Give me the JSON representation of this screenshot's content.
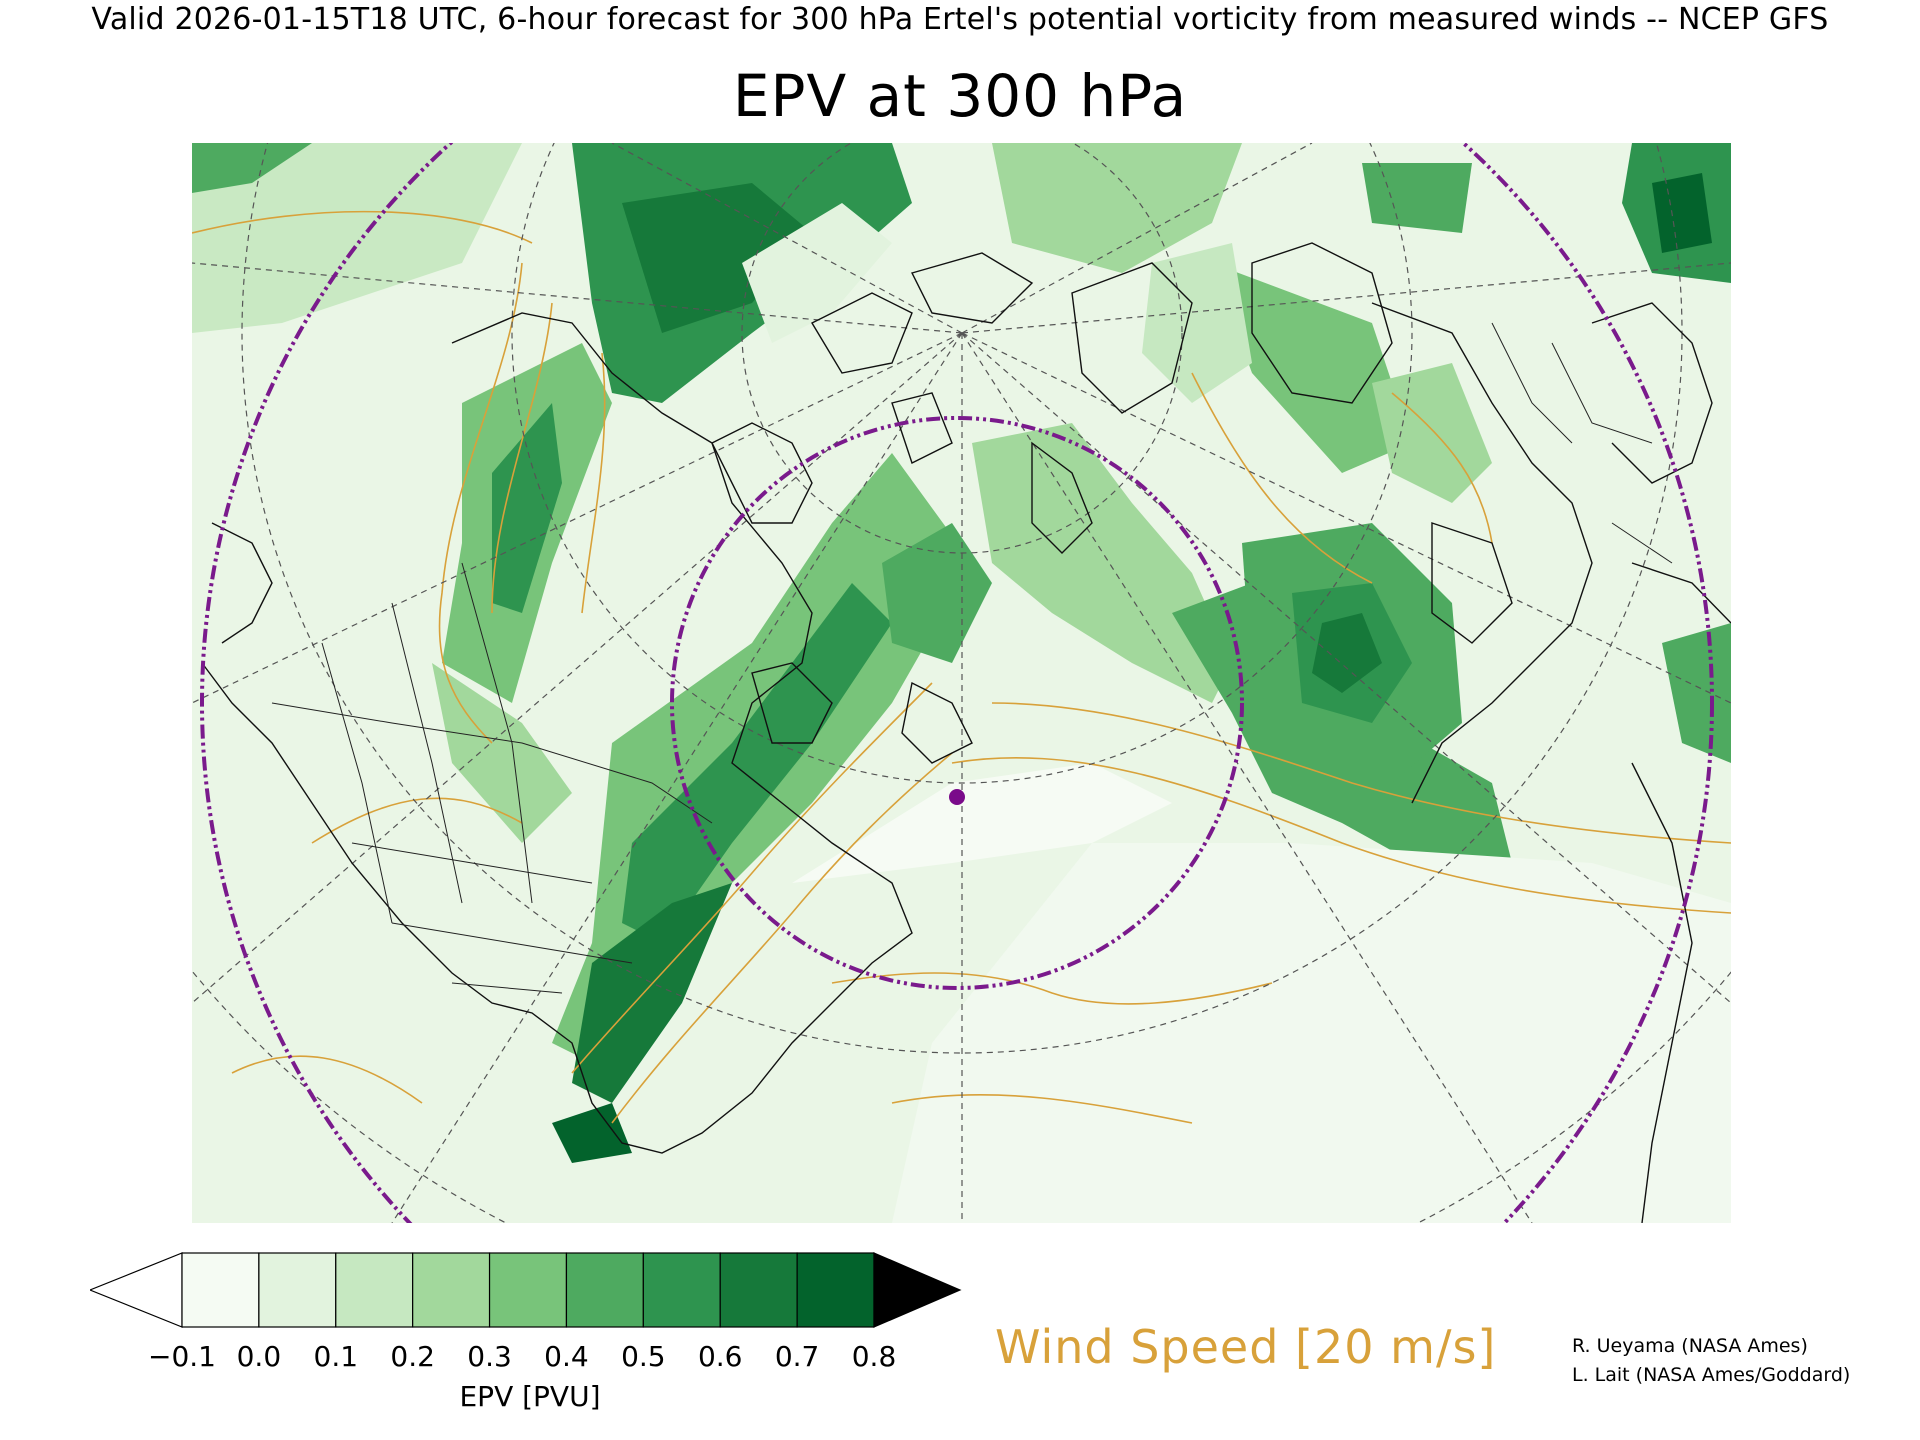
{
  "header": {
    "valid_line": "Valid 2026-01-15T18 UTC, 6-hour forecast for 300 hPa Ertel's potential vorticity from measured winds -- NCEP GFS",
    "title": "EPV at 300 hPa"
  },
  "map": {
    "center_marker_color": "#7a0a8a",
    "range_ring_color": "#7a1a8c",
    "coastline_color": "#000000",
    "wind_contour_color": "#d8a13a",
    "graticule_style": "dashed gray"
  },
  "colorbar": {
    "variable_label": "EPV [PVU]",
    "ticks": [
      "−0.1",
      "0.0",
      "0.1",
      "0.2",
      "0.3",
      "0.4",
      "0.5",
      "0.6",
      "0.7",
      "0.8"
    ],
    "colors": [
      "#f5fbf3",
      "#e2f3de",
      "#c6e8c1",
      "#a2d89c",
      "#78c47a",
      "#4eaa60",
      "#2e944f",
      "#16793a",
      "#03632c"
    ],
    "under_color": "#ffffff",
    "over_color": "#000000"
  },
  "wind_label": "Wind Speed [20 m/s]",
  "credits": [
    "R. Ueyama (NASA Ames)",
    "L. Lait (NASA Ames/Goddard)"
  ]
}
